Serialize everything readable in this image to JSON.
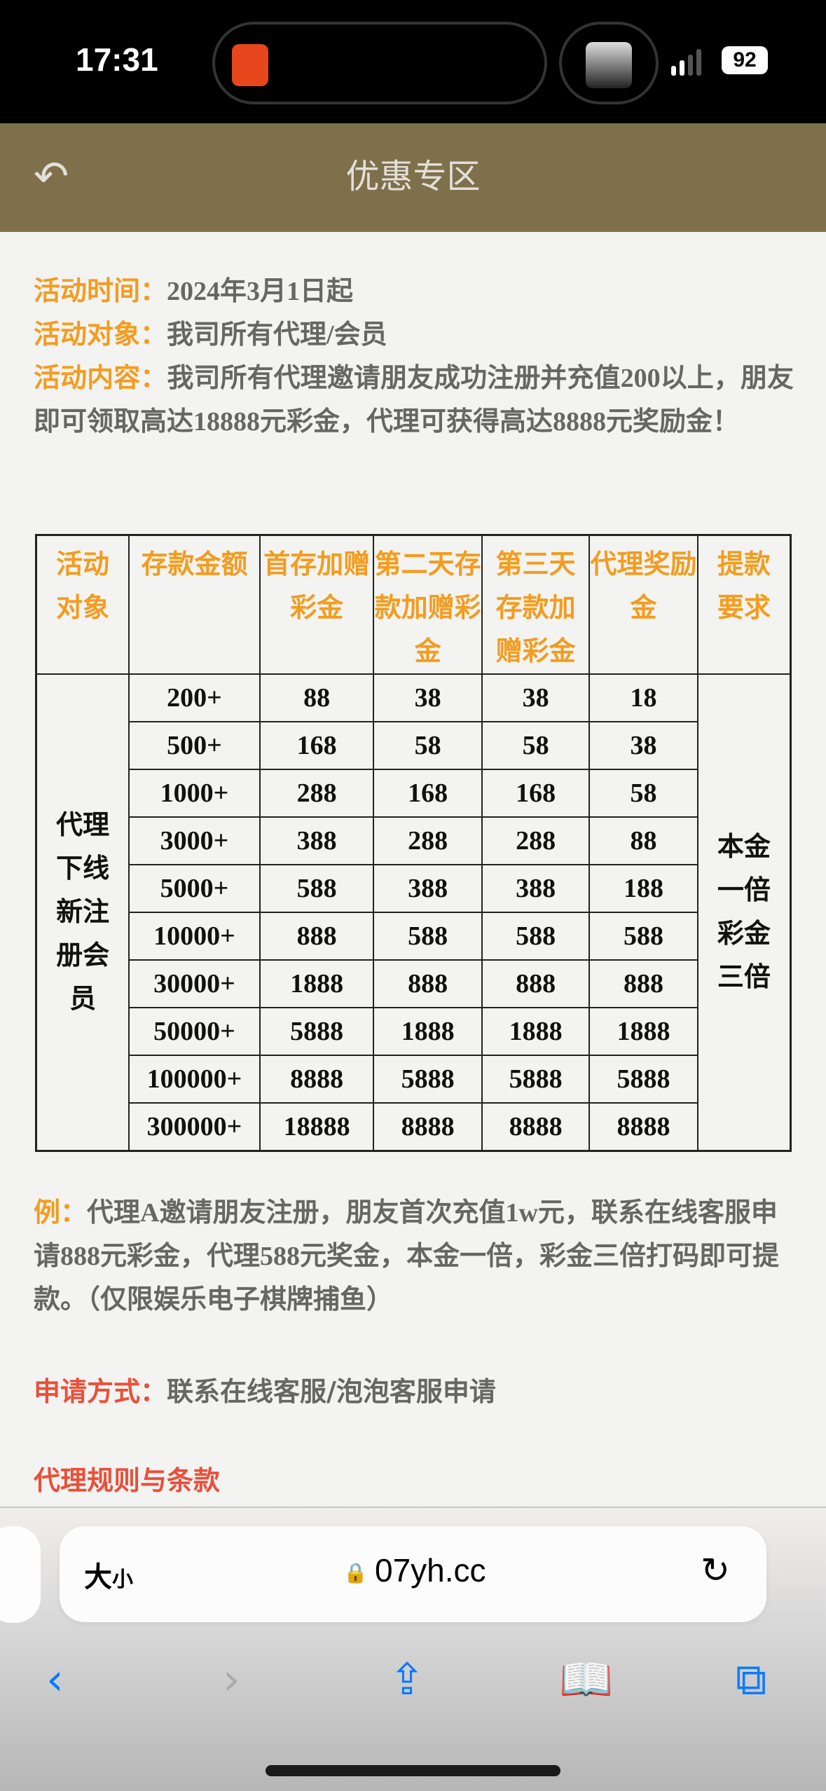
{
  "status_bar": {
    "time": "17:31",
    "battery": "92"
  },
  "header": {
    "title": "优惠专区",
    "back_icon": "back-arrow-icon"
  },
  "intro": {
    "time_label": "活动时间：",
    "time_value": "2024年3月1日起",
    "target_label": "活动对象：",
    "target_value": "我司所有代理/会员",
    "content_label": "活动内容：",
    "content_value": "我司所有代理邀请朋友成功注册并充值200以上，朋友即可领取高达18888元彩金，代理可获得高达8888元奖励金！"
  },
  "table": {
    "headers": [
      "活动对象",
      "存款金额",
      "首存加赠彩金",
      "第二天存款加赠彩金",
      "第三天存款加赠彩金",
      "代理奖励金",
      "提款要求"
    ],
    "target": "代理下线新注册会员",
    "withdraw": "本金一倍彩金三倍",
    "rows": [
      [
        "200+",
        "88",
        "38",
        "38",
        "18"
      ],
      [
        "500+",
        "168",
        "58",
        "58",
        "38"
      ],
      [
        "1000+",
        "288",
        "168",
        "168",
        "58"
      ],
      [
        "3000+",
        "388",
        "288",
        "288",
        "88"
      ],
      [
        "5000+",
        "588",
        "388",
        "388",
        "188"
      ],
      [
        "10000+",
        "888",
        "588",
        "588",
        "588"
      ],
      [
        "30000+",
        "1888",
        "888",
        "888",
        "888"
      ],
      [
        "50000+",
        "5888",
        "1888",
        "1888",
        "1888"
      ],
      [
        "100000+",
        "8888",
        "5888",
        "5888",
        "5888"
      ],
      [
        "300000+",
        "18888",
        "8888",
        "8888",
        "8888"
      ]
    ]
  },
  "example": {
    "label": "例：",
    "text": "代理A邀请朋友注册，朋友首次充值1w元，联系在线客服申请888元彩金，代理588元奖金，本金一倍，彩金三倍打码即可提款。（仅限娱乐电子棋牌捕鱼）"
  },
  "apply": {
    "label": "申请方式：",
    "text": "联系在线客服/泡泡客服申请"
  },
  "rules_link": "代理规则与条款",
  "safari": {
    "text_size_big": "大",
    "text_size_small": "小",
    "domain": "07yh.cc"
  },
  "colors": {
    "header_bg": "#7f704c",
    "label_orange": "#f39c1f",
    "label_red": "#e8503a",
    "ios_blue": "#0a7aff"
  }
}
